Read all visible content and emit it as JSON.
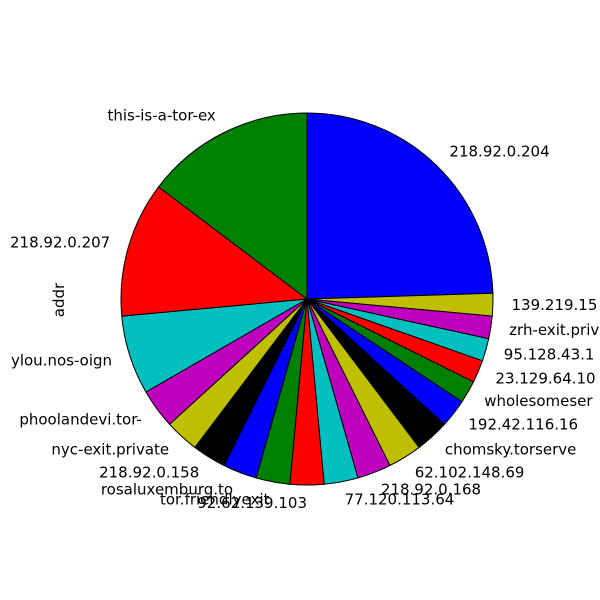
{
  "chart_data": {
    "type": "pie",
    "ylabel": "addr",
    "start_angle_deg": 90,
    "direction": "clockwise",
    "slices": [
      {
        "label": "218.92.0.204",
        "value": 25.0,
        "color": "#0000ff"
      },
      {
        "label": "139.219.15",
        "value": 2.0,
        "color": "#bfbf00"
      },
      {
        "label": "zrh-exit.priv",
        "value": 2.0,
        "color": "#bf00bf"
      },
      {
        "label": "95.128.43.1",
        "value": 2.0,
        "color": "#00bfbf"
      },
      {
        "label": "23.129.64.10",
        "value": 2.0,
        "color": "#ff0000"
      },
      {
        "label": "wholesomeser",
        "value": 2.0,
        "color": "#008000"
      },
      {
        "label": "192.42.116.16",
        "value": 2.5,
        "color": "#0000ff"
      },
      {
        "label": "chomsky.torserve",
        "value": 3.0,
        "color": "#000000"
      },
      {
        "label": "62.102.148.69",
        "value": 3.0,
        "color": "#bfbf00"
      },
      {
        "label": "218.92.0.168",
        "value": 3.0,
        "color": "#bf00bf"
      },
      {
        "label": "77.120.113.64",
        "value": 3.0,
        "color": "#00bfbf"
      },
      {
        "label": "92.62.139.103",
        "value": 3.0,
        "color": "#ff0000"
      },
      {
        "label": "tor.friendlyexit",
        "value": 3.0,
        "color": "#008000"
      },
      {
        "label": "rosaluxemburg.to",
        "value": 3.0,
        "color": "#0000ff"
      },
      {
        "label": "218.92.0.158",
        "value": 3.0,
        "color": "#000000"
      },
      {
        "label": "nyc-exit.private",
        "value": 3.0,
        "color": "#bfbf00"
      },
      {
        "label": "phoolandevi.tor-",
        "value": 3.5,
        "color": "#bf00bf"
      },
      {
        "label": "ylou.nos-oign",
        "value": 7.0,
        "color": "#00bfbf"
      },
      {
        "label": "218.92.0.207",
        "value": 12.0,
        "color": "#ff0000"
      },
      {
        "label": "this-is-a-tor-ex",
        "value": 15.0,
        "color": "#008000"
      }
    ]
  }
}
